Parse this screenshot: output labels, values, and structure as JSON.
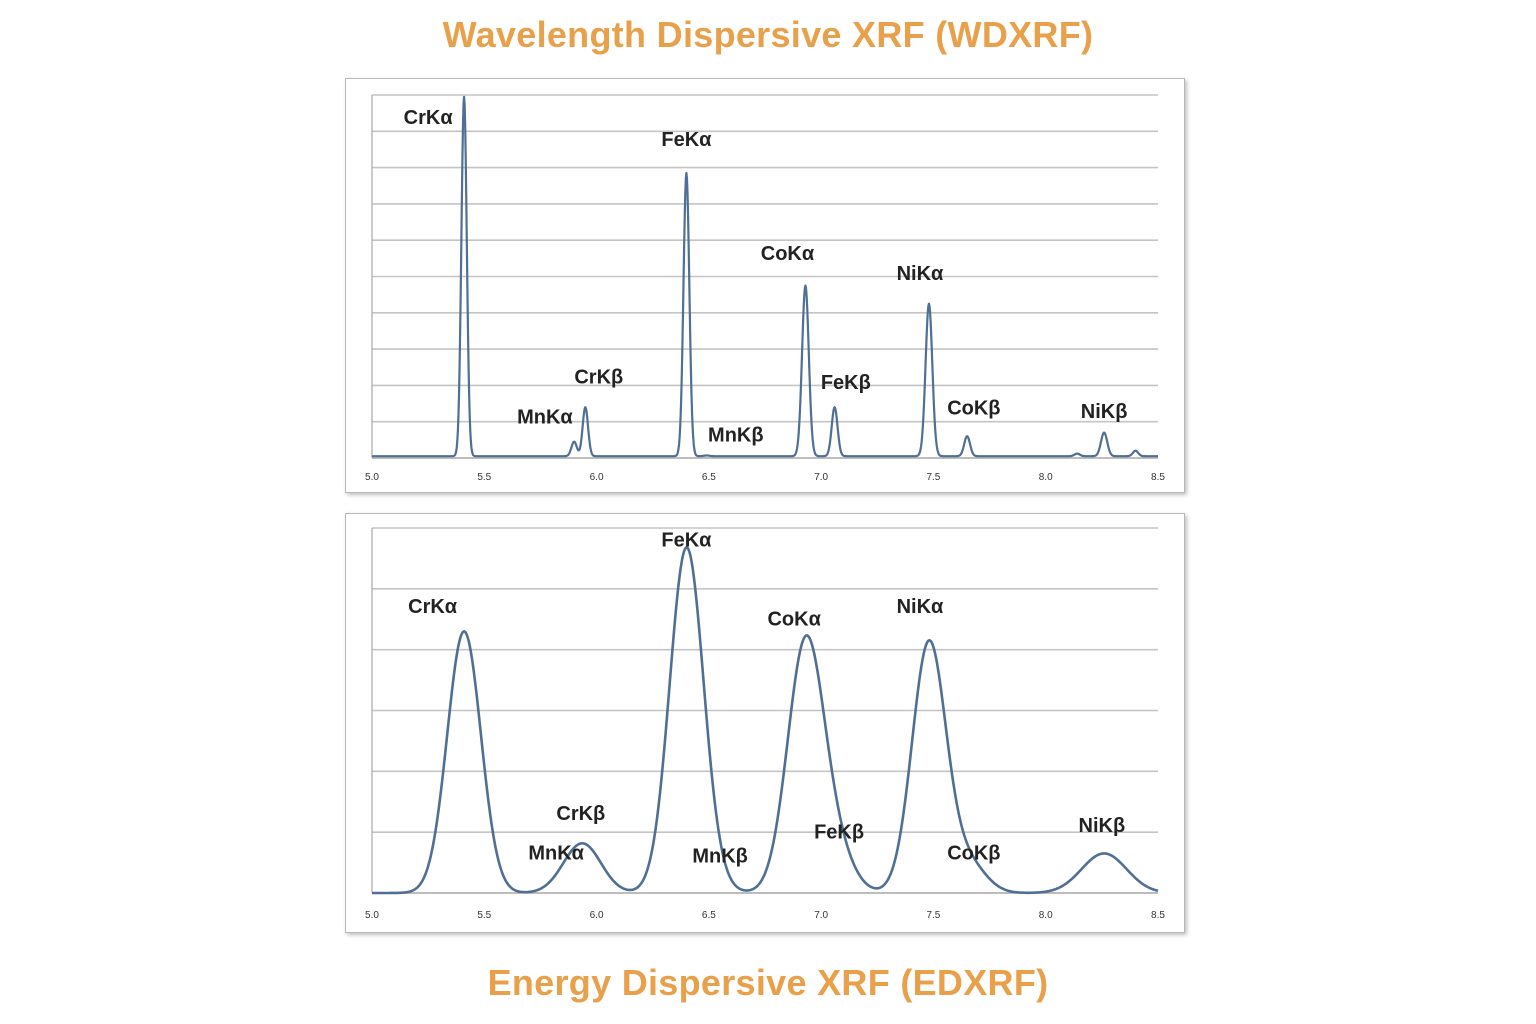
{
  "colors": {
    "title": "#E8A04A",
    "line": "#4F6F95"
  },
  "titles": {
    "top": "Wavelength Dispersive XRF (WDXRF)",
    "bottom": "Energy Dispersive XRF (EDXRF)"
  },
  "chart_data": [
    {
      "type": "line",
      "title": "Wavelength Dispersive XRF (WDXRF)",
      "xlabel": "",
      "ylabel": "",
      "xlim": [
        5.0,
        8.5
      ],
      "ylim": [
        0,
        10
      ],
      "grid": true,
      "x_ticks": [
        "5.0",
        "5.5",
        "6.0",
        "6.5",
        "7.0",
        "7.5",
        "8.0",
        "8.5"
      ],
      "y_tick_labels": false,
      "peaks": [
        {
          "label": "CrKα",
          "x": 5.41,
          "height": 9.9,
          "width": 0.012
        },
        {
          "label": "MnKα",
          "x": 5.9,
          "height": 0.4,
          "width": 0.012
        },
        {
          "label": "CrKβ",
          "x": 5.95,
          "height": 1.35,
          "width": 0.012
        },
        {
          "label": "FeKα",
          "x": 6.4,
          "height": 7.8,
          "width": 0.013
        },
        {
          "label": "MnKβ",
          "x": 6.49,
          "height": 0.02,
          "width": 0.012
        },
        {
          "label": "CoKα",
          "x": 6.93,
          "height": 4.7,
          "width": 0.015
        },
        {
          "label": "FeKβ",
          "x": 7.06,
          "height": 1.35,
          "width": 0.013
        },
        {
          "label": "NiKα",
          "x": 7.48,
          "height": 4.2,
          "width": 0.015
        },
        {
          "label": "CoKβ",
          "x": 7.65,
          "height": 0.55,
          "width": 0.013
        },
        {
          "label": "",
          "x": 8.14,
          "height": 0.07,
          "width": 0.012
        },
        {
          "label": "NiKβ",
          "x": 8.26,
          "height": 0.65,
          "width": 0.014
        },
        {
          "label": "",
          "x": 8.4,
          "height": 0.15,
          "width": 0.012
        }
      ],
      "baseline": 0.05,
      "peak_labels": [
        {
          "text": "CrKα",
          "x": 5.25,
          "y": 9.2
        },
        {
          "text": "MnKα",
          "x": 5.77,
          "y": 0.95
        },
        {
          "text": "CrKβ",
          "x": 6.01,
          "y": 2.05
        },
        {
          "text": "FeKα",
          "x": 6.4,
          "y": 8.6
        },
        {
          "text": "MnKβ",
          "x": 6.62,
          "y": 0.45
        },
        {
          "text": "CoKα",
          "x": 6.85,
          "y": 5.45
        },
        {
          "text": "FeKβ",
          "x": 7.11,
          "y": 1.9
        },
        {
          "text": "NiKα",
          "x": 7.44,
          "y": 4.9
        },
        {
          "text": "CoKβ",
          "x": 7.68,
          "y": 1.2
        },
        {
          "text": "NiKβ",
          "x": 8.26,
          "y": 1.1
        }
      ]
    },
    {
      "type": "line",
      "title": "Energy Dispersive XRF (EDXRF)",
      "xlabel": "",
      "ylabel": "",
      "xlim": [
        5.0,
        8.5
      ],
      "ylim": [
        0,
        6
      ],
      "grid": true,
      "x_ticks": [
        "5.0",
        "5.5",
        "6.0",
        "6.5",
        "7.0",
        "7.5",
        "8.0",
        "8.5"
      ],
      "y_tick_labels": false,
      "peaks": [
        {
          "label": "CrKα",
          "x": 5.41,
          "height": 4.3,
          "width": 0.075
        },
        {
          "label": "MnKα",
          "x": 5.9,
          "height": 0.25,
          "width": 0.08
        },
        {
          "label": "CrKβ",
          "x": 5.95,
          "height": 0.6,
          "width": 0.08
        },
        {
          "label": "FeKα",
          "x": 6.4,
          "height": 5.6,
          "width": 0.075
        },
        {
          "label": "MnKβ",
          "x": 6.49,
          "height": 0.15,
          "width": 0.08
        },
        {
          "label": "CoKα",
          "x": 6.93,
          "height": 4.05,
          "width": 0.08
        },
        {
          "label": "FeKβ",
          "x": 7.06,
          "height": 0.65,
          "width": 0.08
        },
        {
          "label": "NiKα",
          "x": 7.48,
          "height": 4.1,
          "width": 0.075
        },
        {
          "label": "CoKβ",
          "x": 7.65,
          "height": 0.5,
          "width": 0.08
        },
        {
          "label": "NiKβ",
          "x": 8.26,
          "height": 0.65,
          "width": 0.1
        }
      ],
      "baseline": 0.0,
      "peak_labels": [
        {
          "text": "CrKα",
          "x": 5.27,
          "y": 4.6
        },
        {
          "text": "MnKα",
          "x": 5.82,
          "y": 0.55
        },
        {
          "text": "CrKβ",
          "x": 5.93,
          "y": 1.2
        },
        {
          "text": "FeKα",
          "x": 6.4,
          "y": 5.7
        },
        {
          "text": "MnKβ",
          "x": 6.55,
          "y": 0.5
        },
        {
          "text": "CoKα",
          "x": 6.88,
          "y": 4.4
        },
        {
          "text": "FeKβ",
          "x": 7.08,
          "y": 0.9
        },
        {
          "text": "NiKα",
          "x": 7.44,
          "y": 4.6
        },
        {
          "text": "CoKβ",
          "x": 7.68,
          "y": 0.55
        },
        {
          "text": "NiKβ",
          "x": 8.25,
          "y": 1.0
        }
      ]
    }
  ]
}
